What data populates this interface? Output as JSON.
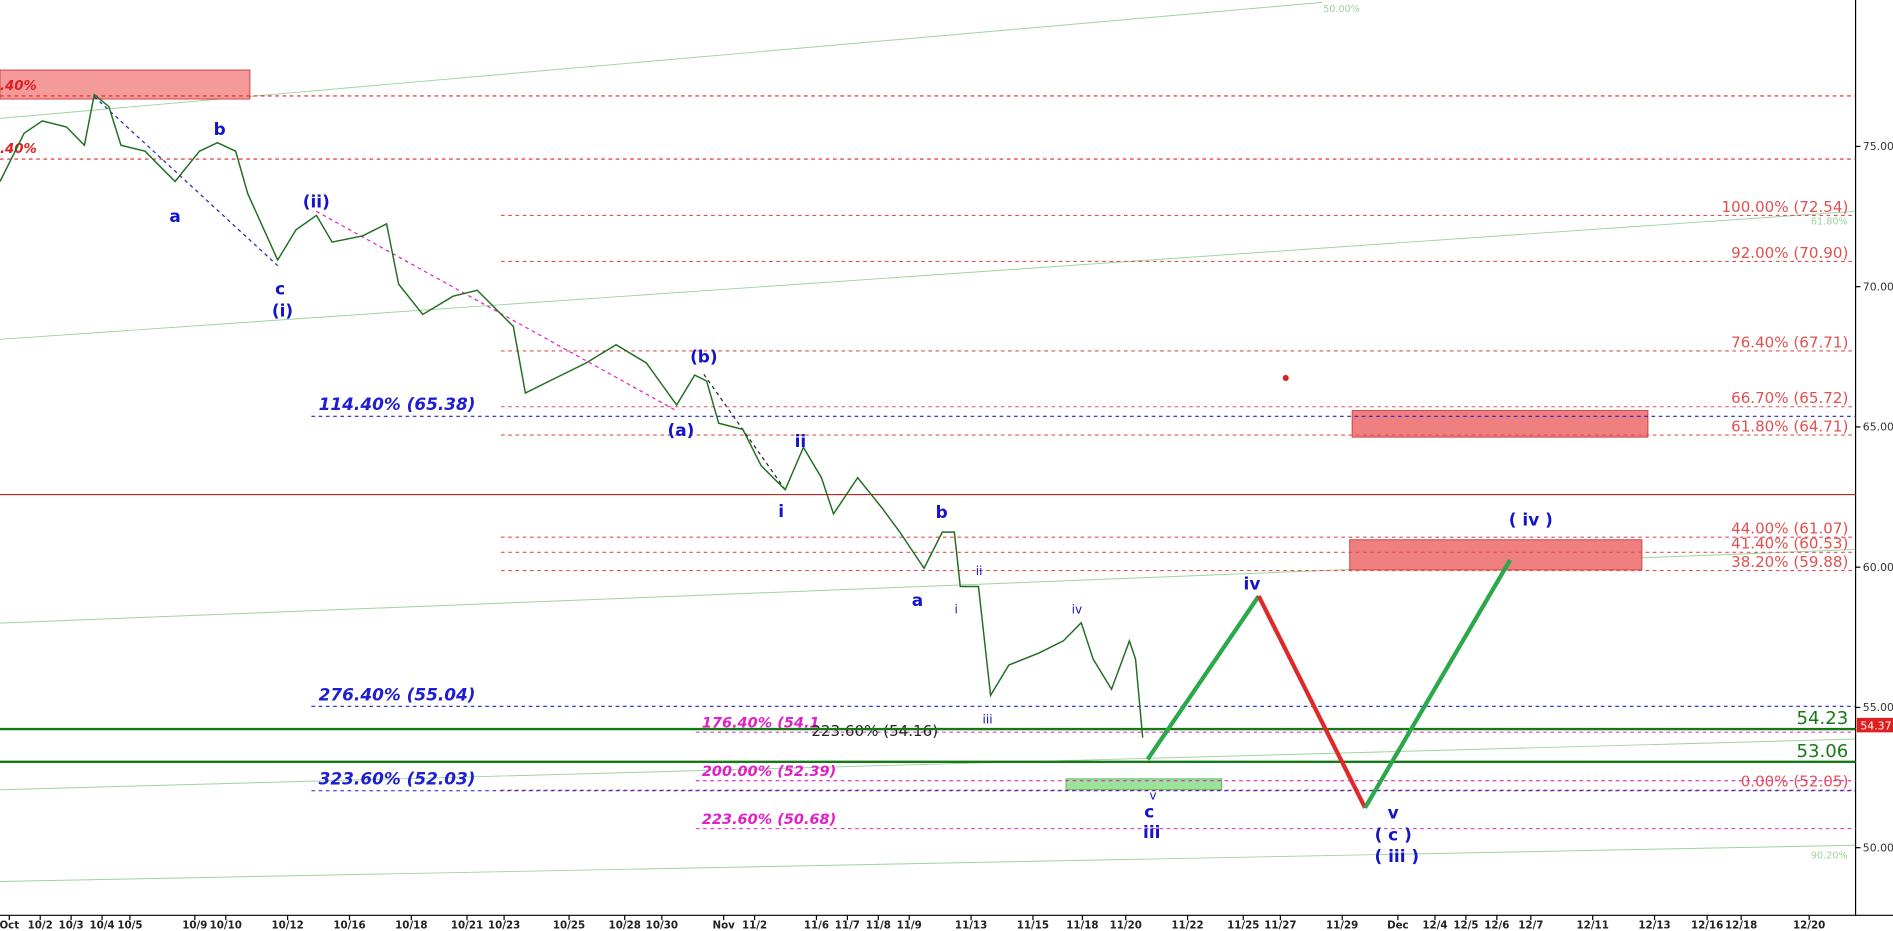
{
  "chart_data": {
    "type": "line",
    "xlim": [
      0,
      60
    ],
    "ylim": [
      47.03,
      80.22
    ],
    "yticks": [
      {
        "value": 50,
        "label": "50.00"
      },
      {
        "value": 55,
        "label": "55.00"
      },
      {
        "value": 60,
        "label": "60.00"
      },
      {
        "value": 65,
        "label": "65.00"
      },
      {
        "value": 70,
        "label": "70.00"
      },
      {
        "value": 75,
        "label": "75.00"
      }
    ],
    "xticks": [
      {
        "value": 0.3,
        "label": "Oct"
      },
      {
        "value": 1.3,
        "label": "10/2"
      },
      {
        "value": 2.3,
        "label": "10/3"
      },
      {
        "value": 3.3,
        "label": "10/4"
      },
      {
        "value": 4.2,
        "label": "10/5"
      },
      {
        "value": 6.3,
        "label": "10/9"
      },
      {
        "value": 7.3,
        "label": "10/10"
      },
      {
        "value": 9.3,
        "label": "10/12"
      },
      {
        "value": 11.3,
        "label": "10/16"
      },
      {
        "value": 13.3,
        "label": "10/18"
      },
      {
        "value": 15.1,
        "label": "10/21"
      },
      {
        "value": 16.3,
        "label": "10/23"
      },
      {
        "value": 18.4,
        "label": "10/25"
      },
      {
        "value": 20.2,
        "label": "10/28"
      },
      {
        "value": 21.4,
        "label": "10/30"
      },
      {
        "value": 23.4,
        "label": "Nov"
      },
      {
        "value": 24.4,
        "label": "11/2"
      },
      {
        "value": 26.4,
        "label": "11/6"
      },
      {
        "value": 27.4,
        "label": "11/7"
      },
      {
        "value": 28.4,
        "label": "11/8"
      },
      {
        "value": 29.4,
        "label": "11/9"
      },
      {
        "value": 31.4,
        "label": "11/13"
      },
      {
        "value": 33.4,
        "label": "11/15"
      },
      {
        "value": 35.0,
        "label": "11/18"
      },
      {
        "value": 36.4,
        "label": "11/20"
      },
      {
        "value": 38.4,
        "label": "11/22"
      },
      {
        "value": 40.2,
        "label": "11/25"
      },
      {
        "value": 41.4,
        "label": "11/27"
      },
      {
        "value": 43.4,
        "label": "11/29"
      },
      {
        "value": 45.2,
        "label": "Dec"
      },
      {
        "value": 46.4,
        "label": "12/4"
      },
      {
        "value": 47.4,
        "label": "12/5"
      },
      {
        "value": 48.4,
        "label": "12/6"
      },
      {
        "value": 49.5,
        "label": "12/7"
      },
      {
        "value": 51.5,
        "label": "12/11"
      },
      {
        "value": 53.5,
        "label": "12/13"
      },
      {
        "value": 55.2,
        "label": "12/16"
      },
      {
        "value": 56.3,
        "label": "12/18"
      },
      {
        "value": 58.5,
        "label": "12/20"
      }
    ],
    "series": [
      {
        "color": "#1e6e1e",
        "x": [
          0,
          0.78,
          1.37,
          2.15,
          2.73,
          3.05,
          3.52,
          3.91,
          4.69,
          5.66,
          6.45,
          7.03,
          7.62,
          8.01,
          8.98,
          9.57,
          10.23,
          10.74,
          11.72,
          12.5,
          12.89,
          13.67,
          14.65,
          15.43,
          16.02,
          16.6,
          16.99,
          17.77,
          18.95,
          19.92,
          20.9,
          21.88,
          22.46,
          22.85,
          23.24,
          24.02,
          24.61,
          25.39,
          25.98,
          26.56,
          26.95,
          27.73,
          28.52,
          29.1,
          29.88,
          30.47,
          30.86,
          31.05,
          31.64,
          32.03,
          32.62,
          33.59,
          34.38,
          34.96,
          35.35,
          35.94,
          36.52,
          36.72,
          36.95
        ],
        "values": [
          73.75,
          75.47,
          75.91,
          75.69,
          75.04,
          76.85,
          76.42,
          75.04,
          74.83,
          73.75,
          74.83,
          75.13,
          74.83,
          73.32,
          70.95,
          72.03,
          72.54,
          71.59,
          71.81,
          72.24,
          70.09,
          69.01,
          69.66,
          69.87,
          69.22,
          68.58,
          66.21,
          66.64,
          67.28,
          67.93,
          67.28,
          65.78,
          66.85,
          66.64,
          65.13,
          64.91,
          63.62,
          62.76,
          64.27,
          63.19,
          61.9,
          63.19,
          62.11,
          61.25,
          59.96,
          61.25,
          61.25,
          59.31,
          59.31,
          55.43,
          56.51,
          56.94,
          57.37,
          58.02,
          56.72,
          55.65,
          57.37,
          56.72,
          53.92
        ]
      },
      {
        "color": "#2aa84a",
        "x": [
          37.11,
          40.7
        ],
        "values": [
          53.15,
          58.97
        ]
      },
      {
        "color": "#e02828",
        "x": [
          40.7,
          44.14
        ],
        "values": [
          58.97,
          51.42
        ]
      },
      {
        "color": "#2aa84a",
        "x": [
          44.14,
          48.83
        ],
        "values": [
          51.42,
          60.26
        ]
      }
    ],
    "levels": [
      {
        "label": "100.00% (72.54)",
        "value": 72.54,
        "x0": 16.2,
        "color": "#e05050",
        "style": "right"
      },
      {
        "label": "92.00% (70.90)",
        "value": 70.9,
        "x0": 16.2,
        "color": "#e05050",
        "style": "right"
      },
      {
        "label": "76.40% (67.71)",
        "value": 67.71,
        "x0": 16.2,
        "color": "#e05050",
        "style": "right"
      },
      {
        "label": "66.70% (65.72)",
        "value": 65.72,
        "x0": 16.2,
        "color": "#e05050",
        "style": "right"
      },
      {
        "label": "61.80% (64.71)",
        "value": 64.71,
        "x0": 16.2,
        "color": "#e05050",
        "style": "right"
      },
      {
        "label": "44.00% (61.07)",
        "value": 61.07,
        "x0": 16.2,
        "color": "#e05050",
        "style": "right"
      },
      {
        "label": "41.40% (60.53)",
        "value": 60.53,
        "x0": 16.2,
        "color": "#e05050",
        "style": "right"
      },
      {
        "label": "38.20% (59.88)",
        "value": 59.88,
        "x0": 16.2,
        "color": "#e05050",
        "style": "right"
      },
      {
        "label": "0.00% (52.05)",
        "value": 52.05,
        "x0": 16.2,
        "color": "#e05050",
        "style": "right"
      },
      {
        "label": ".40%",
        "value": 76.8,
        "x0": 0,
        "color": "#e02020",
        "style": "left"
      },
      {
        "label": ".40%",
        "value": 74.55,
        "x0": 0,
        "color": "#e02020",
        "style": "left"
      },
      {
        "label": "114.40% (65.38)",
        "value": 65.38,
        "x0": 10.07,
        "color": "#1e1ed2",
        "style": "blue"
      },
      {
        "label": "276.40% (55.04)",
        "value": 55.04,
        "x0": 10.07,
        "color": "#1e1ed2",
        "style": "blue"
      },
      {
        "label": "323.60% (52.03)",
        "value": 52.03,
        "x0": 10.07,
        "color": "#1e1ed2",
        "style": "blue"
      },
      {
        "label": "176.40% (54.1",
        "value": 54.12,
        "x0": 22.5,
        "color": "#e020c8",
        "style": "magenta"
      },
      {
        "label": "200.00% (52.39)",
        "value": 52.39,
        "x0": 22.5,
        "color": "#e020c8",
        "style": "magenta"
      },
      {
        "label": "223.60% (50.68)",
        "value": 50.68,
        "x0": 22.5,
        "color": "#e020c8",
        "style": "magenta"
      },
      {
        "label": "223.60% (54.16)",
        "value": 54.16,
        "x0": 26.0,
        "color": "#222222",
        "style": "black"
      },
      {
        "label": "54.23",
        "value": 54.23,
        "x0": 0,
        "color": "#157a15",
        "style": "green"
      },
      {
        "label": "53.06",
        "value": 53.06,
        "x0": 0,
        "color": "#157a15",
        "style": "green"
      }
    ],
    "resistance": 62.59,
    "last_price": 54.37,
    "channel_labels": [
      "50.00%",
      "61.80%",
      "90.20%"
    ],
    "waves": [
      "a",
      "b",
      "c",
      "(i)",
      "(ii)",
      "(b)",
      "(a)",
      "ii",
      "i",
      "b",
      "a",
      "ii",
      "i",
      "iv",
      "iii",
      "v",
      "c",
      "iii",
      "iv",
      "v",
      "( c )",
      "( iii )",
      "( iv )"
    ]
  }
}
